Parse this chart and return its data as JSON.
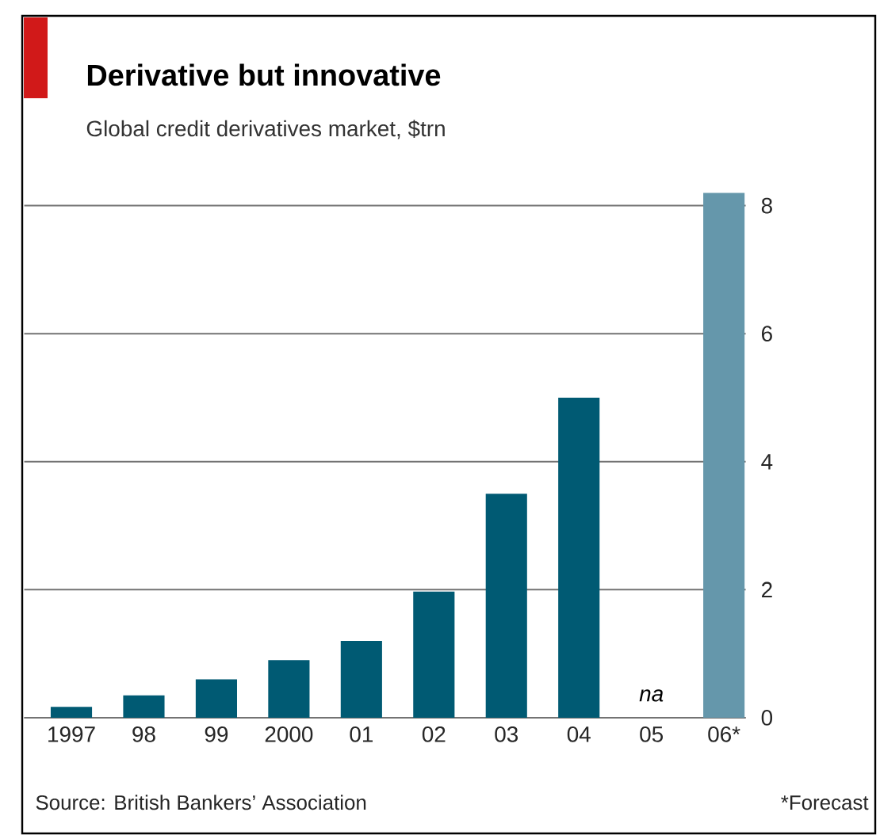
{
  "chart_data": {
    "type": "bar",
    "title": "Derivative but innovative",
    "subtitle": "Global credit derivatives market, $trn",
    "categories": [
      "1997",
      "98",
      "99",
      "2000",
      "01",
      "02",
      "03",
      "04",
      "05",
      "06*"
    ],
    "values": [
      0.17,
      0.35,
      0.6,
      0.9,
      1.2,
      1.97,
      3.5,
      5.0,
      null,
      8.2
    ],
    "colors": [
      "#005a73",
      "#005a73",
      "#005a73",
      "#005a73",
      "#005a73",
      "#005a73",
      "#005a73",
      "#005a73",
      "#005a73",
      "#6597ab"
    ],
    "ylim": [
      0,
      8.2
    ],
    "yticks": [
      0,
      2,
      4,
      6,
      8
    ],
    "grid": "y",
    "annotations": [
      "na",
      "Source: British Bankers’ Association",
      "*Forecast"
    ]
  }
}
